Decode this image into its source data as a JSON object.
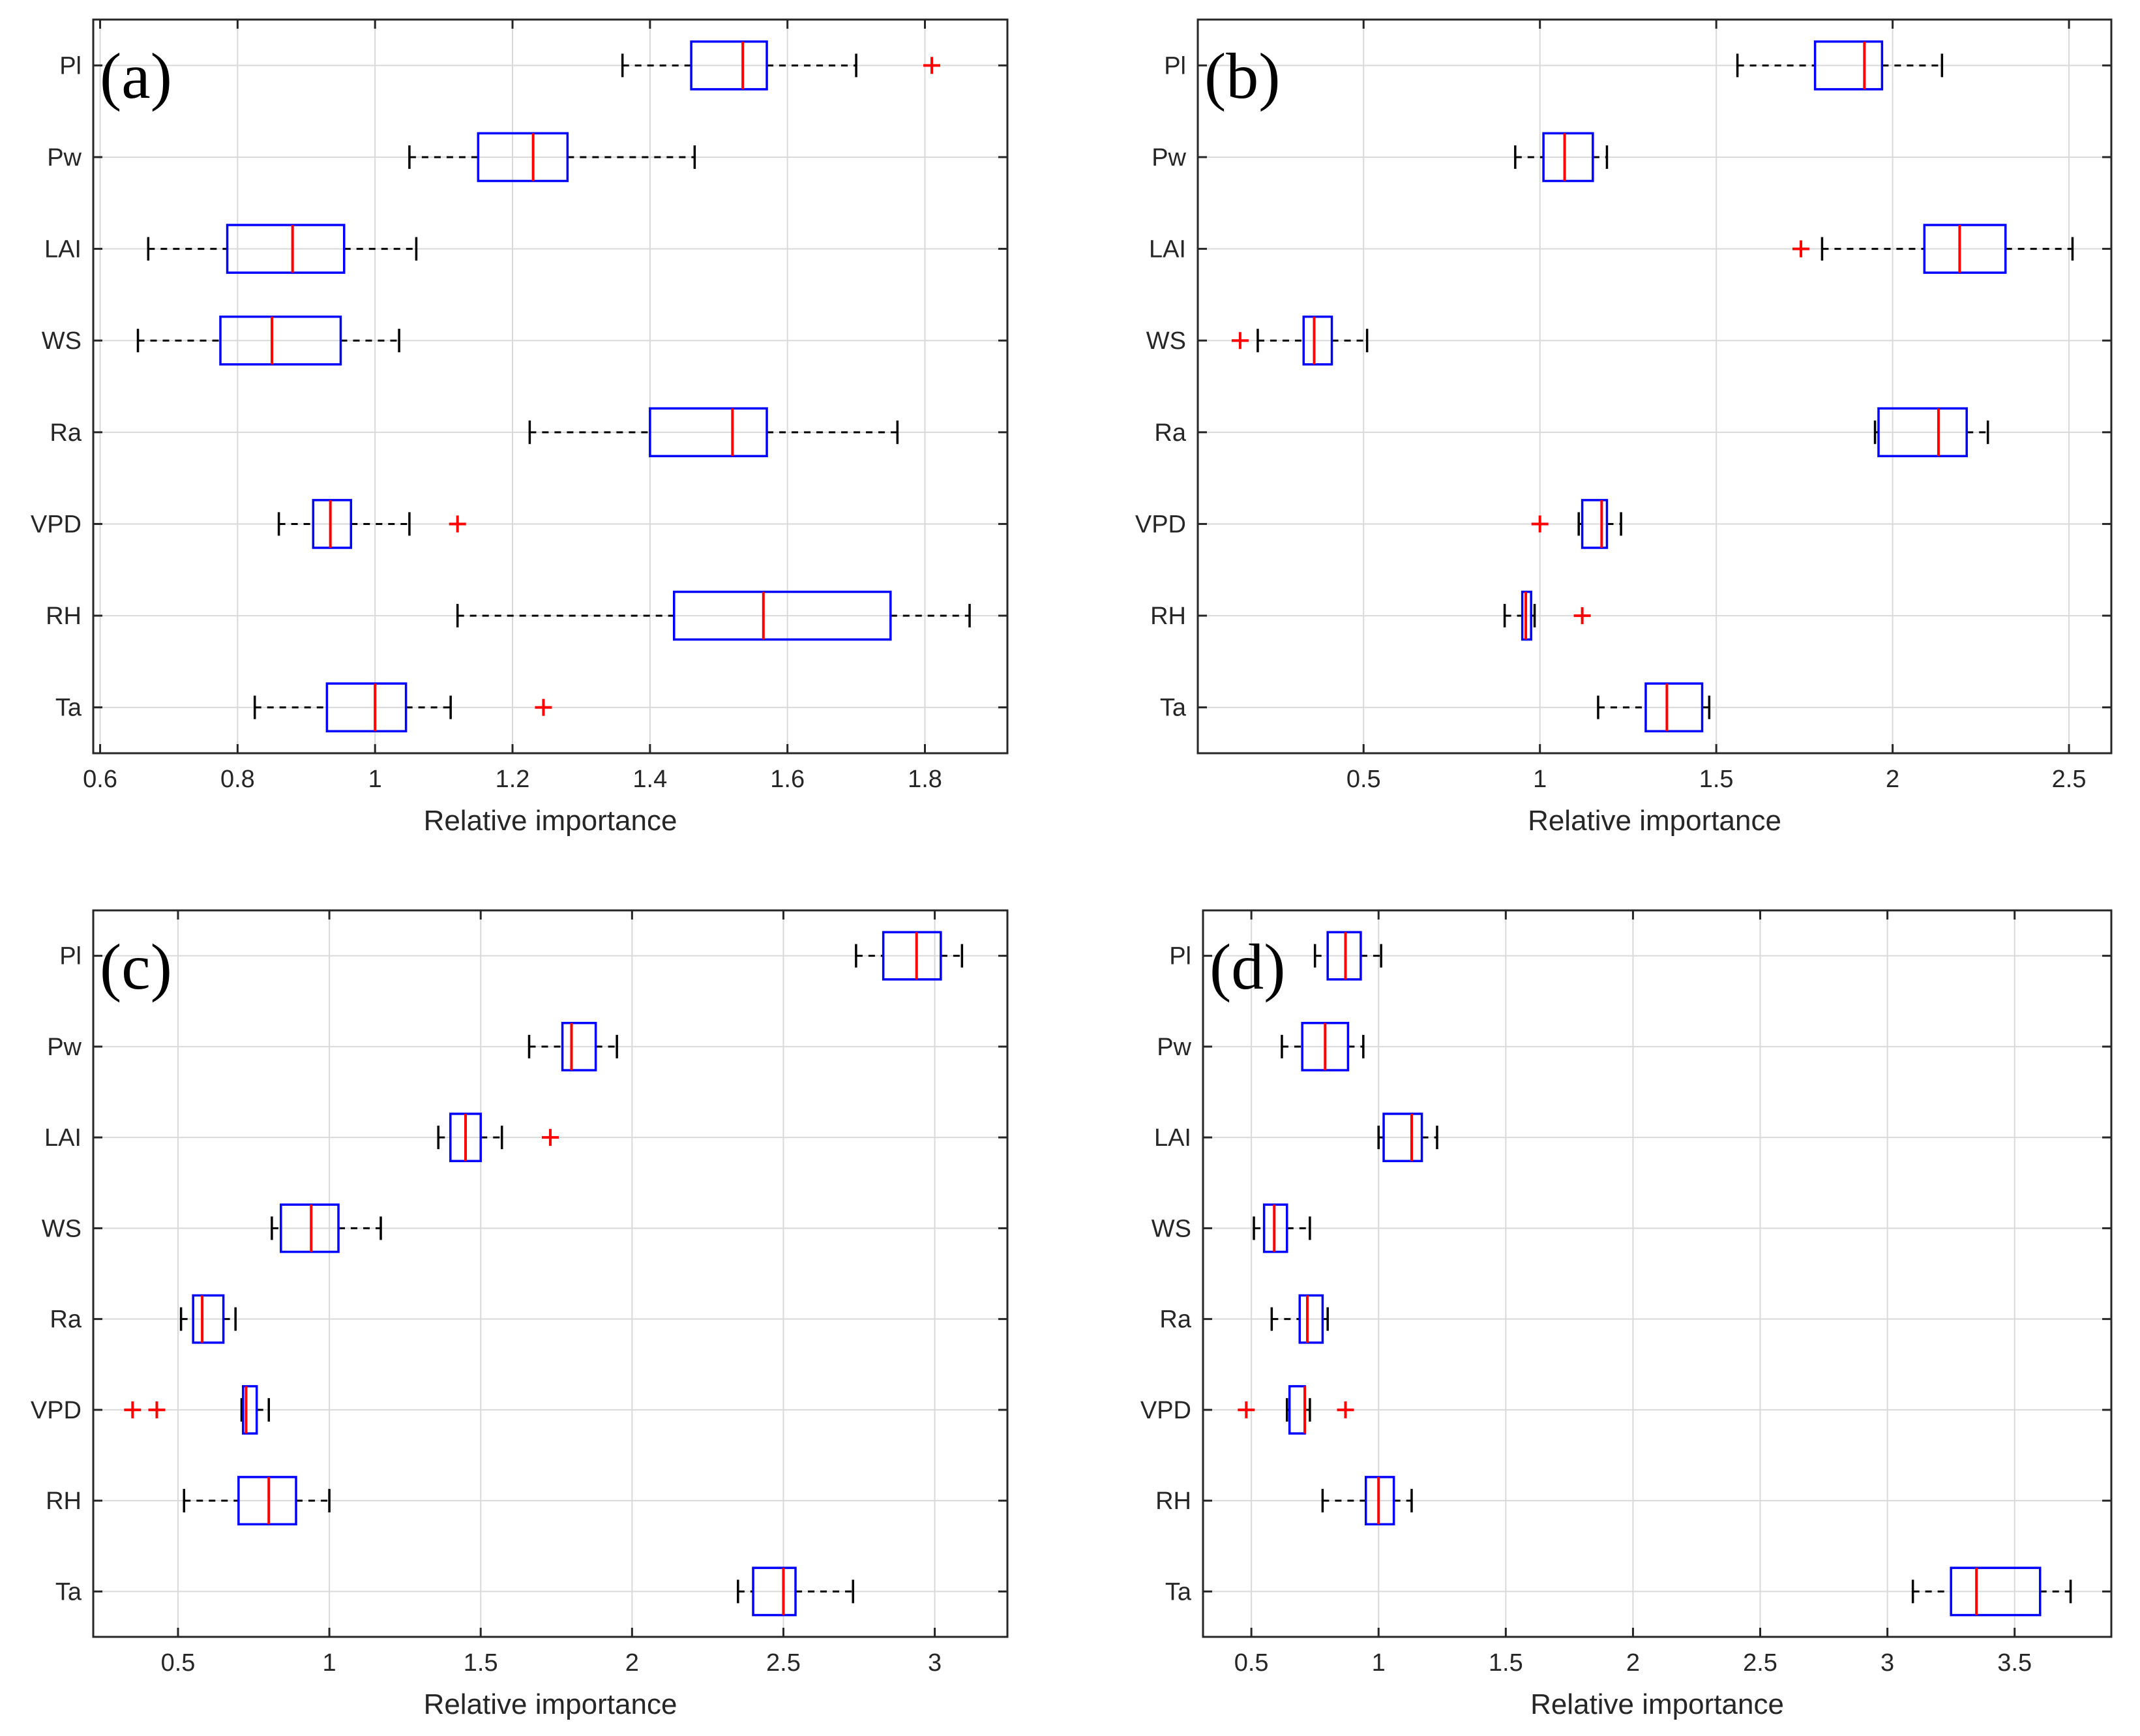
{
  "chart_data": [
    {
      "type": "boxplot",
      "panel_label": "(a)",
      "xlabel": "Relative importance",
      "xlim": [
        0.59,
        1.92
      ],
      "xticks": [
        0.6,
        0.8,
        1,
        1.2,
        1.4,
        1.6,
        1.8
      ],
      "xtick_labels": [
        "0.6",
        "0.8",
        "1",
        "1.2",
        "1.4",
        "1.6",
        "1.8"
      ],
      "categories": [
        "Pl",
        "Pw",
        "LAI",
        "WS",
        "Ra",
        "VPD",
        "RH",
        "Ta"
      ],
      "boxes": [
        {
          "name": "Pl",
          "whisker_low": 1.36,
          "q1": 1.46,
          "median": 1.535,
          "q3": 1.57,
          "whisker_high": 1.7,
          "outliers": [
            1.81
          ]
        },
        {
          "name": "Pw",
          "whisker_low": 1.05,
          "q1": 1.15,
          "median": 1.23,
          "q3": 1.28,
          "whisker_high": 1.465,
          "outliers": []
        },
        {
          "name": "LAI",
          "whisker_low": 0.67,
          "q1": 0.785,
          "median": 0.88,
          "q3": 0.955,
          "whisker_high": 1.06,
          "outliers": []
        },
        {
          "name": "WS",
          "whisker_low": 0.655,
          "q1": 0.775,
          "median": 0.85,
          "q3": 0.95,
          "whisker_high": 1.035,
          "outliers": []
        },
        {
          "name": "Ra",
          "whisker_low": 1.225,
          "q1": 1.4,
          "median": 1.52,
          "q3": 1.57,
          "whisker_high": 1.76,
          "outliers": []
        },
        {
          "name": "VPD",
          "whisker_low": 0.86,
          "q1": 0.91,
          "median": 0.935,
          "q3": 0.965,
          "whisker_high": 1.05,
          "outliers": [
            1.12
          ]
        },
        {
          "name": "RH",
          "whisker_low": 1.12,
          "q1": 1.435,
          "median": 1.565,
          "q3": 1.75,
          "whisker_high": 1.865,
          "outliers": []
        },
        {
          "name": "Ta",
          "whisker_low": 0.825,
          "q1": 0.93,
          "median": 1.0,
          "q3": 1.045,
          "whisker_high": 1.11,
          "outliers": [
            1.245
          ]
        }
      ]
    },
    {
      "type": "boxplot",
      "panel_label": "(b)",
      "xlabel": "Relative importance",
      "xlim": [
        0.03,
        2.62
      ],
      "xticks": [
        0.5,
        1,
        1.5,
        2,
        2.5
      ],
      "xtick_labels": [
        "0.5",
        "1",
        "1.5",
        "2",
        "2.5"
      ],
      "categories": [
        "Pl",
        "Pw",
        "LAI",
        "WS",
        "Ra",
        "VPD",
        "RH",
        "Ta"
      ],
      "boxes": [
        {
          "name": "Pl",
          "whisker_low": 1.56,
          "q1": 1.78,
          "median": 1.92,
          "q3": 1.97,
          "whisker_high": 2.14,
          "outliers": []
        },
        {
          "name": "Pw",
          "whisker_low": 0.93,
          "q1": 1.01,
          "median": 1.07,
          "q3": 1.15,
          "whisker_high": 1.19,
          "outliers": []
        },
        {
          "name": "LAI",
          "whisker_low": 1.8,
          "q1": 2.09,
          "median": 2.19,
          "q3": 2.32,
          "whisker_high": 2.51,
          "outliers": [
            1.74
          ]
        },
        {
          "name": "WS",
          "whisker_low": 0.2,
          "q1": 0.33,
          "median": 0.36,
          "q3": 0.41,
          "whisker_high": 0.51,
          "outliers": [
            0.15
          ]
        },
        {
          "name": "Ra",
          "whisker_low": 1.95,
          "q1": 1.96,
          "median": 2.13,
          "q3": 2.21,
          "whisker_high": 2.27,
          "outliers": []
        },
        {
          "name": "VPD",
          "whisker_low": 1.11,
          "q1": 1.12,
          "median": 1.175,
          "q3": 1.19,
          "whisker_high": 1.23,
          "outliers": [
            1.0
          ]
        },
        {
          "name": "RH",
          "whisker_low": 0.9,
          "q1": 0.95,
          "median": 0.96,
          "q3": 0.975,
          "whisker_high": 0.985,
          "outliers": [
            1.12
          ]
        },
        {
          "name": "Ta",
          "whisker_low": 1.165,
          "q1": 1.3,
          "median": 1.36,
          "q3": 1.46,
          "whisker_high": 1.48,
          "outliers": []
        }
      ]
    },
    {
      "type": "boxplot",
      "panel_label": "(c)",
      "xlabel": "Relative importance",
      "xlim": [
        0.22,
        3.24
      ],
      "xticks": [
        0.5,
        1,
        1.5,
        2,
        2.5,
        3
      ],
      "xtick_labels": [
        "0.5",
        "1",
        "1.5",
        "2",
        "2.5",
        "3"
      ],
      "categories": [
        "Pl",
        "Pw",
        "LAI",
        "WS",
        "Ra",
        "VPD",
        "RH",
        "Ta"
      ],
      "boxes": [
        {
          "name": "Pl",
          "whisker_low": 2.74,
          "q1": 2.83,
          "median": 2.94,
          "q3": 3.02,
          "whisker_high": 3.09,
          "outliers": []
        },
        {
          "name": "Pw",
          "whisker_low": 1.66,
          "q1": 1.77,
          "median": 1.8,
          "q3": 1.88,
          "whisker_high": 1.95,
          "outliers": []
        },
        {
          "name": "LAI",
          "whisker_low": 1.36,
          "q1": 1.4,
          "median": 1.45,
          "q3": 1.5,
          "whisker_high": 1.57,
          "outliers": [
            1.73
          ]
        },
        {
          "name": "WS",
          "whisker_low": 0.81,
          "q1": 0.84,
          "median": 0.94,
          "q3": 1.03,
          "whisker_high": 1.17,
          "outliers": []
        },
        {
          "name": "Ra",
          "whisker_low": 0.51,
          "q1": 0.55,
          "median": 0.58,
          "q3": 0.65,
          "whisker_high": 0.69,
          "outliers": []
        },
        {
          "name": "VPD",
          "whisker_low": 0.71,
          "q1": 0.715,
          "median": 0.725,
          "q3": 0.76,
          "whisker_high": 0.8,
          "outliers": [
            0.35,
            0.43
          ]
        },
        {
          "name": "RH",
          "whisker_low": 0.52,
          "q1": 0.7,
          "median": 0.8,
          "q3": 0.89,
          "whisker_high": 1.0,
          "outliers": []
        },
        {
          "name": "Ta",
          "whisker_low": 2.35,
          "q1": 2.4,
          "median": 2.5,
          "q3": 2.54,
          "whisker_high": 2.73,
          "outliers": []
        }
      ]
    },
    {
      "type": "boxplot",
      "panel_label": "(d)",
      "xlabel": "Relative importance",
      "xlim": [
        0.31,
        3.88
      ],
      "xticks": [
        0.5,
        1,
        1.5,
        2,
        2.5,
        3,
        3.5
      ],
      "xtick_labels": [
        "0.5",
        "1",
        "1.5",
        "2",
        "2.5",
        "3",
        "3.5"
      ],
      "categories": [
        "Pl",
        "Pw",
        "LAI",
        "WS",
        "Ra",
        "VPD",
        "RH",
        "Ta"
      ],
      "boxes": [
        {
          "name": "Pl",
          "whisker_low": 0.75,
          "q1": 0.8,
          "median": 0.87,
          "q3": 0.93,
          "whisker_high": 1.01,
          "outliers": []
        },
        {
          "name": "Pw",
          "whisker_low": 0.62,
          "q1": 0.7,
          "median": 0.79,
          "q3": 0.88,
          "whisker_high": 0.94,
          "outliers": []
        },
        {
          "name": "LAI",
          "whisker_low": 1.0,
          "q1": 1.02,
          "median": 1.13,
          "q3": 1.17,
          "whisker_high": 1.23,
          "outliers": []
        },
        {
          "name": "WS",
          "whisker_low": 0.51,
          "q1": 0.55,
          "median": 0.59,
          "q3": 0.64,
          "whisker_high": 0.73,
          "outliers": []
        },
        {
          "name": "Ra",
          "whisker_low": 0.58,
          "q1": 0.69,
          "median": 0.72,
          "q3": 0.78,
          "whisker_high": 0.8,
          "outliers": []
        },
        {
          "name": "VPD",
          "whisker_low": 0.64,
          "q1": 0.65,
          "median": 0.71,
          "q3": 0.71,
          "whisker_high": 0.73,
          "outliers": [
            0.48,
            0.87
          ]
        },
        {
          "name": "RH",
          "whisker_low": 0.78,
          "q1": 0.95,
          "median": 1.0,
          "q3": 1.06,
          "whisker_high": 1.13,
          "outliers": []
        },
        {
          "name": "Ta",
          "whisker_low": 3.1,
          "q1": 3.25,
          "median": 3.35,
          "q3": 3.6,
          "whisker_high": 3.72,
          "outliers": []
        }
      ]
    }
  ],
  "colors": {
    "box": "#0000ff",
    "median": "#ff0000",
    "outlier": "#ff0000",
    "whisker": "#000000",
    "grid": "#d9d9d9",
    "axis": "#262626"
  }
}
